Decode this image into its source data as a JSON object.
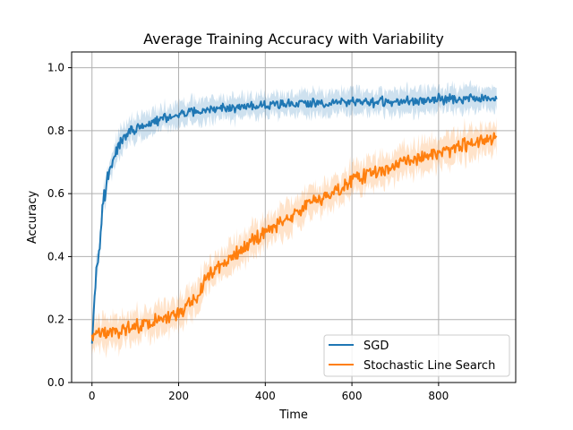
{
  "chart_data": {
    "type": "line",
    "title": "Average Training Accuracy with Variability",
    "xlabel": "Time",
    "ylabel": "Accuracy",
    "xlim": [
      -47,
      978
    ],
    "ylim": [
      0.0,
      1.05
    ],
    "xticks": [
      0,
      200,
      400,
      600,
      800
    ],
    "yticks": [
      0.0,
      0.2,
      0.4,
      0.6,
      0.8,
      1.0
    ],
    "xtick_labels": [
      "0",
      "200",
      "400",
      "600",
      "800"
    ],
    "ytick_labels": [
      "0.0",
      "0.2",
      "0.4",
      "0.6",
      "0.8",
      "1.0"
    ],
    "grid": true,
    "legend_position": "lower-right",
    "series": [
      {
        "name": "SGD",
        "color": "#1f77b4",
        "x": [
          0,
          5,
          10,
          15,
          20,
          25,
          30,
          40,
          50,
          60,
          75,
          90,
          110,
          130,
          150,
          175,
          200,
          230,
          260,
          300,
          350,
          400,
          450,
          500,
          550,
          600,
          650,
          700,
          750,
          800,
          850,
          900,
          935
        ],
        "y": [
          0.15,
          0.27,
          0.35,
          0.42,
          0.5,
          0.55,
          0.6,
          0.67,
          0.71,
          0.75,
          0.78,
          0.8,
          0.81,
          0.82,
          0.83,
          0.84,
          0.85,
          0.86,
          0.86,
          0.87,
          0.875,
          0.88,
          0.885,
          0.885,
          0.89,
          0.89,
          0.89,
          0.895,
          0.895,
          0.9,
          0.9,
          0.9,
          0.905
        ],
        "band": 0.035
      },
      {
        "name": "Stochastic Line Search",
        "color": "#ff7f0e",
        "x": [
          0,
          50,
          100,
          150,
          200,
          230,
          250,
          260,
          300,
          350,
          400,
          450,
          500,
          550,
          600,
          650,
          700,
          750,
          800,
          850,
          900,
          935
        ],
        "y": [
          0.15,
          0.16,
          0.18,
          0.2,
          0.22,
          0.25,
          0.28,
          0.33,
          0.37,
          0.43,
          0.48,
          0.52,
          0.57,
          0.6,
          0.64,
          0.67,
          0.69,
          0.71,
          0.73,
          0.75,
          0.77,
          0.78
        ],
        "band": 0.045
      }
    ]
  }
}
